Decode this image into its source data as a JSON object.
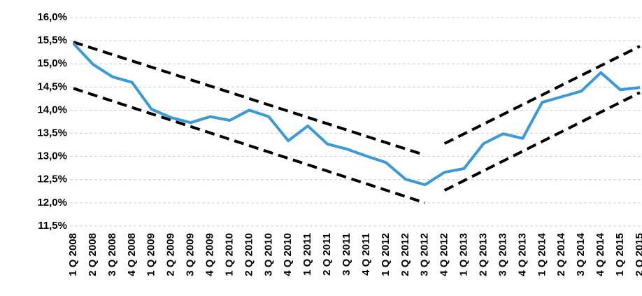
{
  "chart_data": {
    "type": "line",
    "categories": [
      "1 Q 2008",
      "2 Q 2008",
      "3 Q 2008",
      "4 Q 2008",
      "1 Q 2009",
      "2 Q 2009",
      "3 Q 2009",
      "4 Q 2009",
      "1 Q 2010",
      "2 Q 2010",
      "3 Q 2010",
      "4 Q 2010",
      "1 Q 2011",
      "2 Q 2011",
      "3 Q 2011",
      "4 Q 2011",
      "1 Q 2012",
      "2 Q 2012",
      "3 Q 2012",
      "4 Q 2012",
      "1 Q 2013",
      "2 Q 2013",
      "3 Q 2013",
      "4 Q 2013",
      "1 Q 2014",
      "2 Q 2014",
      "3 Q 2014",
      "4 Q 2014",
      "1 Q 2015",
      "2 Q 2015"
    ],
    "series": [
      {
        "color": "#3a9ad9",
        "values": [
          15.44,
          14.99,
          14.72,
          14.6,
          14.02,
          13.84,
          13.73,
          13.86,
          13.78,
          14.0,
          13.86,
          13.34,
          13.66,
          13.27,
          13.16,
          13.01,
          12.87,
          12.51,
          12.39,
          12.66,
          12.74,
          13.28,
          13.49,
          13.39,
          14.17,
          14.29,
          14.41,
          14.81,
          14.44,
          14.49
        ]
      }
    ],
    "trend_lines": [
      {
        "color": "#000000",
        "x": [
          0,
          18
        ],
        "values": [
          15.47,
          13.03
        ]
      },
      {
        "color": "#000000",
        "x": [
          0,
          18
        ],
        "values": [
          14.47,
          12.0
        ]
      },
      {
        "color": "#000000",
        "x": [
          19,
          29
        ],
        "values": [
          13.28,
          15.38
        ]
      },
      {
        "color": "#000000",
        "x": [
          19,
          29
        ],
        "values": [
          12.27,
          14.38
        ]
      }
    ],
    "ylim": [
      11.5,
      16.0
    ],
    "yticks": [
      {
        "value": 11.5,
        "label": "11,5%"
      },
      {
        "value": 12.0,
        "label": "12,0%"
      },
      {
        "value": 12.5,
        "label": "12,5%"
      },
      {
        "value": 13.0,
        "label": "13,0%"
      },
      {
        "value": 13.5,
        "label": "13,5%"
      },
      {
        "value": 14.0,
        "label": "14,0%"
      },
      {
        "value": 14.5,
        "label": "14,5%"
      },
      {
        "value": 15.0,
        "label": "15,0%"
      },
      {
        "value": 15.5,
        "label": "15,5%"
      },
      {
        "value": 16.0,
        "label": "16,0%"
      }
    ],
    "grid": true
  }
}
